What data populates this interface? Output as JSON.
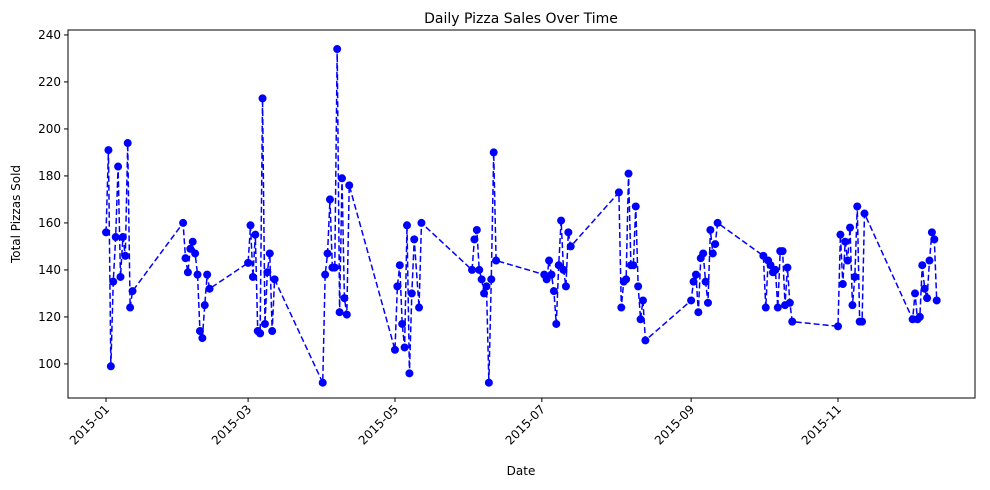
{
  "chart_data": {
    "type": "line",
    "title": "Daily Pizza Sales Over Time",
    "xlabel": "Date",
    "ylabel": "Total Pizzas Sold",
    "series": [
      {
        "name": "Total Pizzas Sold",
        "color": "#0000ff",
        "x": [
          1,
          2,
          3,
          4,
          5,
          6,
          7,
          8,
          9,
          10,
          11,
          12,
          33,
          34,
          35,
          36,
          37,
          38,
          39,
          40,
          41,
          42,
          43,
          44,
          60,
          61,
          62,
          63,
          64,
          65,
          66,
          67,
          68,
          69,
          70,
          71,
          91,
          92,
          93,
          94,
          95,
          96,
          97,
          98,
          99,
          100,
          101,
          102,
          121,
          122,
          123,
          124,
          125,
          126,
          127,
          128,
          129,
          131,
          132,
          153,
          154,
          155,
          156,
          157,
          158,
          159,
          160,
          161,
          162,
          163,
          183,
          184,
          185,
          186,
          187,
          188,
          189,
          190,
          191,
          192,
          193,
          194,
          214,
          215,
          216,
          217,
          218,
          219,
          220,
          221,
          222,
          223,
          224,
          225,
          244,
          245,
          246,
          247,
          248,
          249,
          250,
          251,
          252,
          253,
          254,
          255,
          274,
          275,
          276,
          277,
          278,
          279,
          280,
          281,
          282,
          283,
          284,
          285,
          286,
          305,
          306,
          307,
          308,
          309,
          310,
          311,
          312,
          313,
          314,
          315,
          316,
          336,
          337,
          338,
          339,
          340,
          341,
          342,
          343,
          344,
          345,
          346
        ],
        "values": [
          156,
          191,
          99,
          135,
          154,
          184,
          137,
          154,
          146,
          194,
          124,
          131,
          160,
          145,
          139,
          149,
          152,
          147,
          138,
          114,
          111,
          125,
          138,
          132,
          143,
          159,
          137,
          155,
          114,
          113,
          213,
          117,
          139,
          147,
          114,
          136,
          92,
          138,
          147,
          170,
          141,
          141,
          234,
          122,
          179,
          128,
          121,
          176,
          106,
          133,
          142,
          117,
          107,
          159,
          96,
          130,
          153,
          124,
          160,
          140,
          153,
          157,
          140,
          136,
          130,
          133,
          92,
          136,
          190,
          144,
          138,
          136,
          144,
          138,
          131,
          117,
          142,
          161,
          140,
          133,
          156,
          150,
          173,
          124,
          135,
          136,
          181,
          142,
          142,
          167,
          133,
          119,
          127,
          110,
          127,
          135,
          138,
          122,
          145,
          147,
          135,
          126,
          157,
          147,
          151,
          160,
          146,
          124,
          144,
          142,
          139,
          140,
          124,
          148,
          148,
          125,
          141,
          126,
          118,
          116,
          155,
          134,
          152,
          144,
          158,
          125,
          137,
          167,
          118,
          118,
          164,
          119,
          130,
          119,
          120,
          142,
          132,
          128,
          144,
          156,
          153,
          127
        ]
      }
    ],
    "xlim": [
      -14.8,
      361.9
    ],
    "xticks": [
      {
        "value": 1,
        "label": "2015-01"
      },
      {
        "value": 60,
        "label": "2015-03"
      },
      {
        "value": 121,
        "label": "2015-05"
      },
      {
        "value": 182,
        "label": "2015-07"
      },
      {
        "value": 244,
        "label": "2015-09"
      },
      {
        "value": 305,
        "label": "2015-11"
      }
    ],
    "ylim": [
      85.5,
      242.1
    ],
    "yticks": [
      100,
      120,
      140,
      160,
      180,
      200,
      220,
      240
    ],
    "grid": false
  }
}
